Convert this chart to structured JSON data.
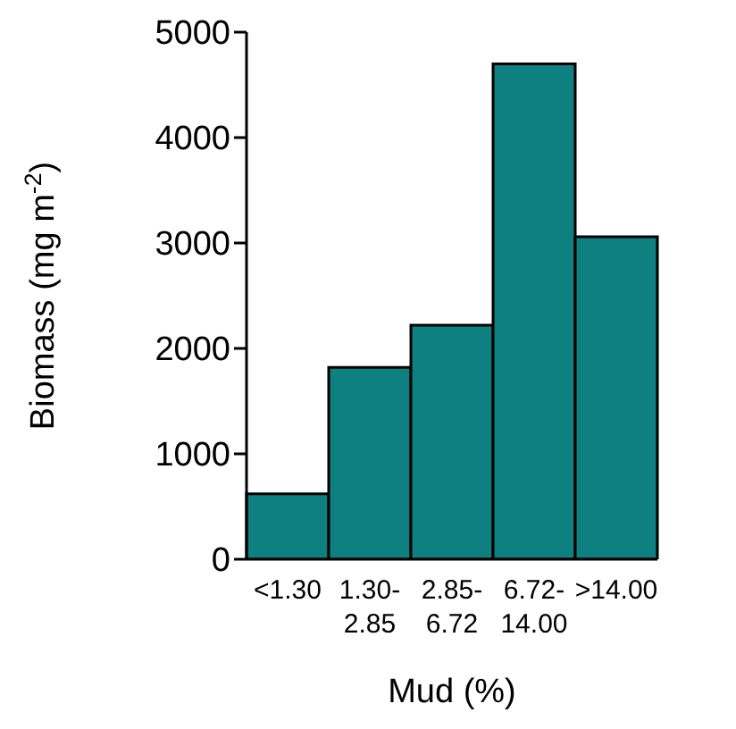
{
  "chart_data": {
    "type": "bar",
    "xlabel": "Mud (%)",
    "ylabel": "Biomass (mg m$^{-2}$)",
    "categories": [
      "<1.30",
      "1.30-2.85",
      "2.85-6.72",
      "6.72-14.00",
      ">14.00"
    ],
    "values": [
      620,
      1820,
      2220,
      4700,
      3060
    ],
    "color": "#0e8080",
    "ylim": [
      0,
      5000
    ],
    "yticks": [
      0,
      1000,
      2000,
      3000,
      4000,
      5000
    ],
    "grid": false
  }
}
